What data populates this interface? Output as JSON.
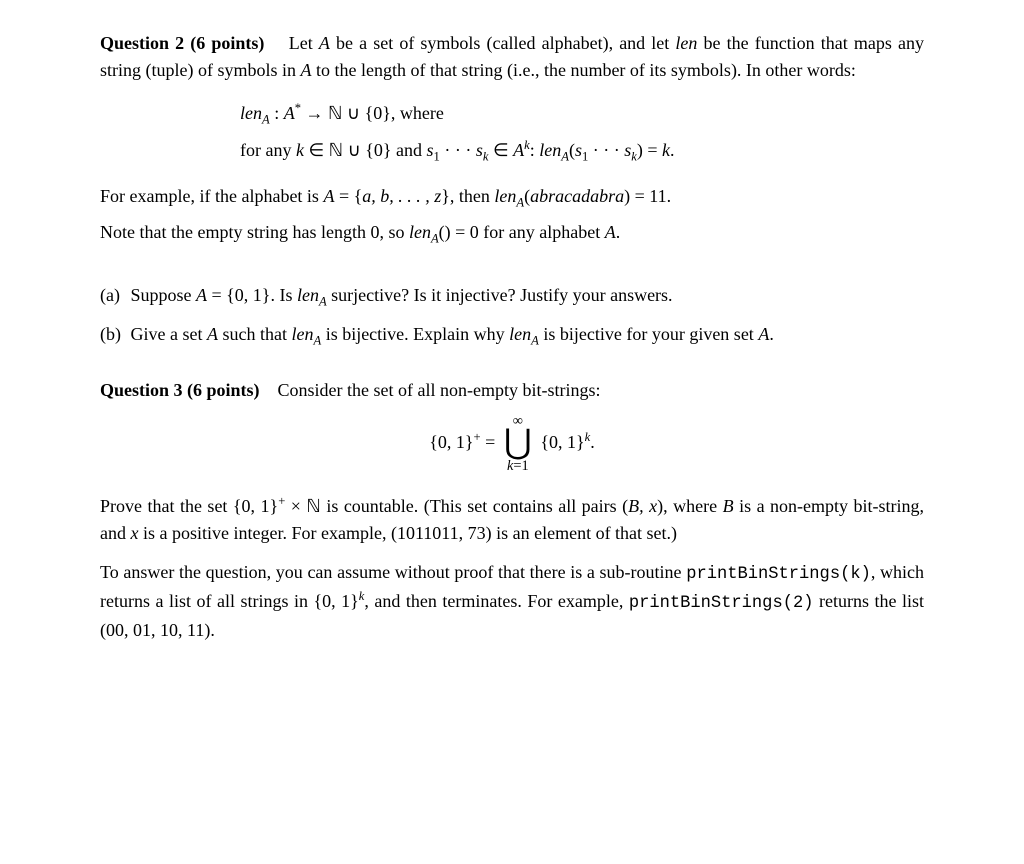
{
  "q2": {
    "heading": "Question 2 (6 points)",
    "intro_1": "Let ",
    "A": "A",
    "intro_2": " be a set of symbols (called alphabet), and let ",
    "len": "len",
    "intro_3": " be the function that maps any string (tuple) of symbols in ",
    "intro_4": " to the length of that string (i.e., the number of its symbols). In other words:",
    "formula_line1_a": "len",
    "formula_line1_sub": "A",
    "formula_line1_b": " : ",
    "formula_line1_c": "A",
    "formula_line1_star": "*",
    "formula_line1_d": " → ℕ ∪ {0},  where",
    "formula_line2_a": "for any ",
    "formula_line2_b": "k",
    "formula_line2_c": " ∈ ℕ ∪ {0} and ",
    "formula_line2_d": "s",
    "formula_line2_d1": "1",
    "formula_line2_dots": " · · · ",
    "formula_line2_e": "s",
    "formula_line2_ek": "k",
    "formula_line2_f": " ∈ ",
    "formula_line2_g": "A",
    "formula_line2_gk": "k",
    "formula_line2_h": ":   ",
    "formula_line2_i": "len",
    "formula_line2_isub": "A",
    "formula_line2_j": "(",
    "formula_line2_k": "s",
    "formula_line2_k1": "1",
    "formula_line2_l": " · · · ",
    "formula_line2_m": "s",
    "formula_line2_mk": "k",
    "formula_line2_n": ") = ",
    "formula_line2_o": "k",
    "formula_line2_p": ".",
    "example_1": "For example, if the alphabet is ",
    "example_2": "A",
    "example_3": " = {",
    "example_4": "a, b, . . . , z",
    "example_5": "}, then ",
    "example_6": "len",
    "example_6sub": "A",
    "example_7": "(",
    "example_8": "abracadabra",
    "example_9": ") = 11.",
    "note_1": "Note that the empty string has length 0, so ",
    "note_2": "len",
    "note_2sub": "A",
    "note_3": "() = 0 for any alphabet ",
    "note_4": "A",
    "note_5": ".",
    "a_label": "(a)",
    "a_1": "Suppose ",
    "a_2": "A",
    "a_3": " = {0, 1}. Is ",
    "a_4": "len",
    "a_4sub": "A",
    "a_5": " surjective? Is it injective? Justify your answers.",
    "b_label": "(b)",
    "b_1": "Give a set ",
    "b_2": "A",
    "b_3": " such that ",
    "b_4": "len",
    "b_4sub": "A",
    "b_5": " is bijective. Explain why ",
    "b_6": "len",
    "b_6sub": "A",
    "b_7": " is bijective for your given set ",
    "b_8": "A",
    "b_9": "."
  },
  "q3": {
    "heading": "Question 3 (6 points)",
    "intro": "Consider the set of all non-empty bit-strings:",
    "formula_lhs": "{0, 1}",
    "formula_plus": "+",
    "formula_eq": " = ",
    "union_top": "∞",
    "union_sym": "⋃",
    "union_bot_a": "k",
    "union_bot_b": "=1",
    "formula_rhs_a": " {0, 1}",
    "formula_rhs_k": "k",
    "formula_rhs_dot": ".",
    "prove_1": "Prove that the set {0, 1}",
    "prove_plus": "+",
    "prove_2": " × ℕ is countable. (This set contains all pairs (",
    "prove_3": "B, x",
    "prove_4": "), where ",
    "prove_5": "B",
    "prove_6": " is a non-empty bit-string, and ",
    "prove_7": "x",
    "prove_8": " is a positive integer. For example, (1011011, 73) is an element of that set.)",
    "hint_1": "To answer the question, you can assume without proof that there is a sub-routine ",
    "hint_code1": "printBinStrings(k)",
    "hint_2": ", which returns a list of all strings in {0, 1}",
    "hint_k": "k",
    "hint_3": ", and then terminates. For example, ",
    "hint_code2": "printBinStrings(2)",
    "hint_4": " returns the list (00, 01, 10, 11)."
  }
}
